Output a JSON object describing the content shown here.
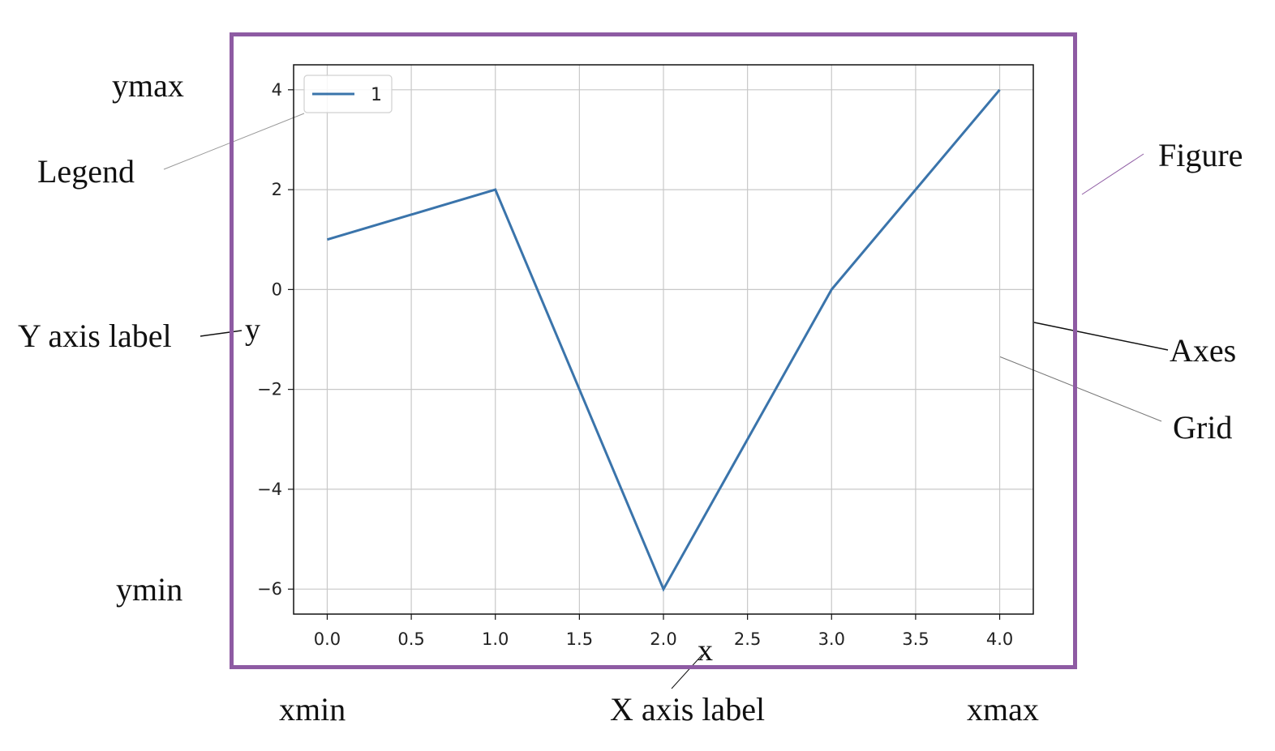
{
  "chart_data": {
    "type": "line",
    "x": [
      0,
      1,
      2,
      3,
      4
    ],
    "series": [
      {
        "name": "1",
        "values": [
          1,
          2,
          -6,
          0,
          4
        ],
        "color": "#3a74ab"
      }
    ],
    "xlabel": "x",
    "ylabel": "y",
    "xlim": [
      -0.2,
      4.2
    ],
    "ylim": [
      -6.5,
      4.5
    ],
    "xticks": [
      0.0,
      0.5,
      1.0,
      1.5,
      2.0,
      2.5,
      3.0,
      3.5,
      4.0
    ],
    "xtick_labels": [
      "0.0",
      "0.5",
      "1.0",
      "1.5",
      "2.0",
      "2.5",
      "3.0",
      "3.5",
      "4.0"
    ],
    "yticks": [
      -6,
      -4,
      -2,
      0,
      2,
      4
    ],
    "ytick_labels": [
      "−6",
      "−4",
      "−2",
      "0",
      "2",
      "4"
    ],
    "grid": true,
    "legend": {
      "position": "top-left",
      "entries": [
        "1"
      ]
    }
  },
  "annotations": {
    "ymax": "ymax",
    "ymin": "ymin",
    "xmin": "xmin",
    "xmax": "xmax",
    "legend": "Legend",
    "figure": "Figure",
    "axes": "Axes",
    "grid": "Grid",
    "y_axis_label": "Y axis label",
    "x_axis_label": "X axis label"
  },
  "colors": {
    "figure_border": "#8e5ba3",
    "line": "#3a74ab",
    "grid": "#c8c8c8"
  }
}
